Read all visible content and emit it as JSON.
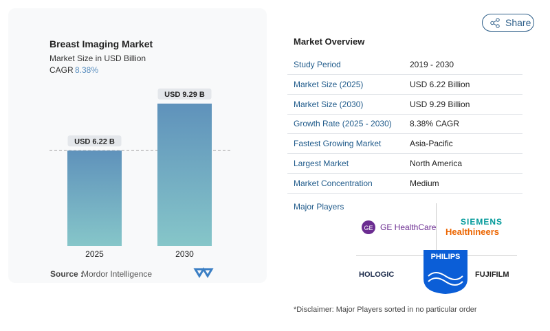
{
  "share": "Share",
  "chart_data": {
    "type": "bar",
    "title": "Breast Imaging Market",
    "subtitle": "Market Size in USD Billion",
    "cagr_label": "CAGR",
    "cagr": "8.38%",
    "categories": [
      "2025",
      "2030"
    ],
    "values": [
      6.22,
      9.29
    ],
    "value_labels": [
      "USD 6.22 B",
      "USD 9.29 B"
    ],
    "color": "#5f92bb",
    "source_label": "Source :",
    "source": "Mordor Intelligence"
  },
  "overview": {
    "title": "Market Overview",
    "rows": [
      [
        "Study Period",
        "2019 - 2030"
      ],
      [
        "Market Size (2025)",
        "USD 6.22 Billion"
      ],
      [
        "Market Size (2030)",
        "USD 9.29 Billion"
      ],
      [
        "Growth Rate (2025 - 2030)",
        "8.38% CAGR"
      ],
      [
        "Fastest Growing Market",
        "Asia-Pacific"
      ],
      [
        "Largest Market",
        "North America"
      ],
      [
        "Market Concentration",
        "Medium"
      ]
    ],
    "players_title": "Major Players",
    "players": [
      "GE HealthCare",
      "SIEMENS",
      "Healthineers",
      "HOLOGIC",
      "PHILIPS",
      "FUJIFILM"
    ],
    "disclaimer": "*Disclaimer: Major Players sorted in no particular order"
  }
}
